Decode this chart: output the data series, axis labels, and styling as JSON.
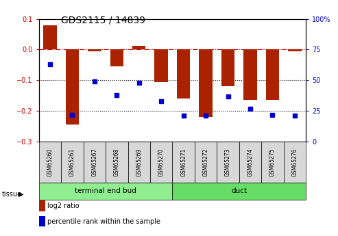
{
  "title": "GDS2115 / 14839",
  "samples": [
    "GSM65260",
    "GSM65261",
    "GSM65267",
    "GSM65268",
    "GSM65269",
    "GSM65270",
    "GSM65271",
    "GSM65272",
    "GSM65273",
    "GSM65274",
    "GSM65275",
    "GSM65276"
  ],
  "log2_ratio": [
    0.08,
    -0.245,
    -0.005,
    -0.055,
    0.013,
    -0.105,
    -0.16,
    -0.22,
    -0.12,
    -0.165,
    -0.165,
    -0.005
  ],
  "percentile": [
    63,
    22,
    49,
    38,
    48,
    33,
    21,
    21,
    37,
    27,
    22,
    21
  ],
  "tissue_groups": [
    {
      "label": "terminal end bud",
      "start": 0,
      "end": 6,
      "color": "#90EE90"
    },
    {
      "label": "duct",
      "start": 6,
      "end": 12,
      "color": "#66DD66"
    }
  ],
  "ylim_left": [
    -0.3,
    0.1
  ],
  "ylim_right": [
    0,
    100
  ],
  "bar_color": "#AA2200",
  "dot_color": "#0000CC",
  "zero_line_color": "#CC0000",
  "grid_color": "#000000",
  "sample_box_color": "#D8D8D8",
  "title_fontsize": 10
}
